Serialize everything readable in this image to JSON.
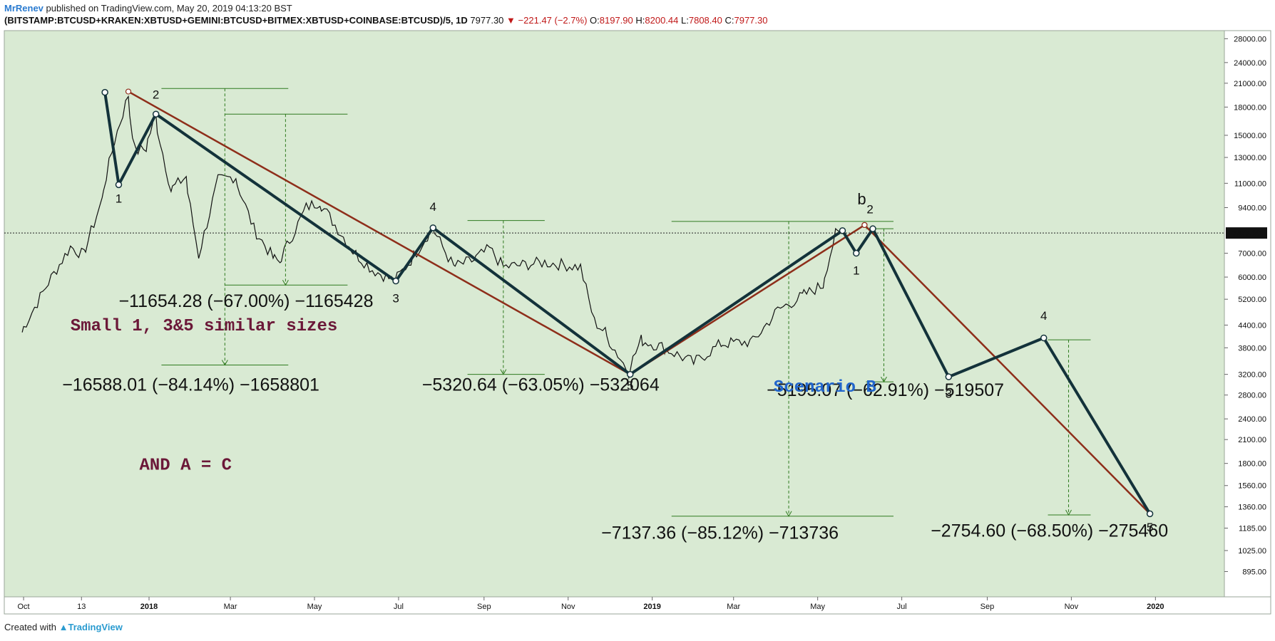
{
  "header": {
    "author": "MrRenev",
    "published": "published on TradingView.com, May 20, 2019 04:13:20 BST",
    "symbol": "(BITSTAMP:BTCUSD+KRAKEN:XBTUSD+GEMINI:BTCUSD+BITMEX:XBTUSD+COINBASE:BTCUSD)/5, 1D",
    "last": "7977.30",
    "change": "−221.47 (−2.7%)",
    "o_label": "O:",
    "o": "8197.90",
    "h_label": "H:",
    "h": "8200.44",
    "l_label": "L:",
    "l": "7808.40",
    "c_label": "C:",
    "c": "7977.30"
  },
  "footer": {
    "created": "Created with",
    "brand": "TradingView"
  },
  "colors": {
    "plot_bg": "#d9ead3",
    "wave": "#13323a",
    "trend": "#8e2e1a",
    "measure": "#2f7a1f",
    "text_purple": "#6b1838",
    "text_blue": "#2266cc",
    "price_tag_bg": "#111111"
  },
  "chart_data": {
    "type": "line",
    "scale": "log",
    "ylim": [
      760,
      29500
    ],
    "y_ticks": [
      "895.00",
      "1025.00",
      "1185.00",
      "1360.00",
      "1560.00",
      "1800.00",
      "2100.00",
      "2400.00",
      "2800.00",
      "3200.00",
      "3800.00",
      "4400.00",
      "5200.00",
      "6000.00",
      "7000.00",
      "9400.00",
      "11000.00",
      "13000.00",
      "15000.00",
      "18000.00",
      "21000.00",
      "24000.00",
      "28000.00"
    ],
    "x_ticks": [
      "Oct",
      "13",
      "2018",
      "Mar",
      "May",
      "Jul",
      "Sep",
      "Nov",
      "2019",
      "Mar",
      "May",
      "Jul",
      "Sep",
      "Nov",
      "2020"
    ],
    "current_price": "7977.30",
    "price_series": [
      [
        "2017-10-01",
        4200
      ],
      [
        "2017-10-20",
        5800
      ],
      [
        "2017-11-05",
        7300
      ],
      [
        "2017-11-15",
        6900
      ],
      [
        "2017-11-28",
        9900
      ],
      [
        "2017-12-07",
        14500
      ],
      [
        "2017-12-17",
        19500
      ],
      [
        "2017-12-22",
        13500
      ],
      [
        "2017-12-30",
        13800
      ],
      [
        "2018-01-06",
        17000
      ],
      [
        "2018-01-17",
        10500
      ],
      [
        "2018-01-28",
        11500
      ],
      [
        "2018-02-06",
        6900
      ],
      [
        "2018-02-20",
        11200
      ],
      [
        "2018-03-05",
        11500
      ],
      [
        "2018-03-18",
        8200
      ],
      [
        "2018-04-01",
        6800
      ],
      [
        "2018-04-06",
        6600
      ],
      [
        "2018-04-25",
        9400
      ],
      [
        "2018-05-05",
        9800
      ],
      [
        "2018-05-28",
        7200
      ],
      [
        "2018-06-12",
        6300
      ],
      [
        "2018-06-28",
        5850
      ],
      [
        "2018-07-10",
        6700
      ],
      [
        "2018-07-26",
        8300
      ],
      [
        "2018-08-10",
        6400
      ],
      [
        "2018-08-25",
        6700
      ],
      [
        "2018-09-05",
        7200
      ],
      [
        "2018-09-15",
        6400
      ],
      [
        "2018-10-15",
        6600
      ],
      [
        "2018-11-10",
        6400
      ],
      [
        "2018-11-20",
        4500
      ],
      [
        "2018-11-28",
        4200
      ],
      [
        "2018-12-15",
        3250
      ],
      [
        "2018-12-24",
        4000
      ],
      [
        "2019-01-10",
        3800
      ],
      [
        "2019-01-31",
        3450
      ],
      [
        "2019-02-20",
        3900
      ],
      [
        "2019-03-15",
        3950
      ],
      [
        "2019-04-02",
        4850
      ],
      [
        "2019-04-20",
        5300
      ],
      [
        "2019-05-05",
        5700
      ],
      [
        "2019-05-14",
        7900
      ],
      [
        "2019-05-19",
        8000
      ]
    ],
    "wave_line": [
      [
        "2017-11-30",
        19800
      ],
      [
        "2017-12-10",
        10900
      ],
      [
        "2018-01-06",
        17200
      ],
      [
        "2018-06-29",
        5850
      ],
      [
        "2018-07-26",
        8250
      ],
      [
        "2018-12-16",
        3200
      ],
      [
        "2019-05-19",
        8100
      ],
      [
        "2019-05-29",
        7000
      ],
      [
        "2019-06-10",
        8200
      ],
      [
        "2019-08-04",
        3150
      ],
      [
        "2019-10-12",
        4050
      ],
      [
        "2019-12-28",
        1300
      ]
    ],
    "trend_lines": [
      [
        [
          "2017-12-17",
          19900
        ],
        [
          "2018-12-16",
          3200
        ]
      ],
      [
        [
          "2018-12-16",
          3200
        ],
        [
          "2019-06-04",
          8400
        ]
      ],
      [
        [
          "2019-06-04",
          8400
        ],
        [
          "2019-12-28",
          1300
        ]
      ]
    ],
    "wave_labels": [
      {
        "label": "1",
        "date": "2017-12-10",
        "price": 9700,
        "pos": "below"
      },
      {
        "label": "2",
        "date": "2018-01-06",
        "price": 19000,
        "pos": "above"
      },
      {
        "label": "3",
        "date": "2018-06-29",
        "price": 5100,
        "pos": "below"
      },
      {
        "label": "4",
        "date": "2018-07-26",
        "price": 9200,
        "pos": "above"
      },
      {
        "label": "5",
        "date": "2018-12-16",
        "price": 2900,
        "pos": "below"
      },
      {
        "label": "1",
        "date": "2019-05-29",
        "price": 6100,
        "pos": "below"
      },
      {
        "label": "2",
        "date": "2019-06-08",
        "price": 9050,
        "pos": "above"
      },
      {
        "label": "b",
        "date": "2019-06-02",
        "price": 9600,
        "pos": "above"
      },
      {
        "label": "3",
        "date": "2019-08-04",
        "price": 2750,
        "pos": "below"
      },
      {
        "label": "4",
        "date": "2019-10-12",
        "price": 4550,
        "pos": "above"
      },
      {
        "label": "5",
        "date": "2019-12-28",
        "price": 1160,
        "pos": "below"
      }
    ],
    "measurements": [
      {
        "d1": "2018-01-10",
        "d2": "2018-04-12",
        "xm": "2018-02-25",
        "top": 20300,
        "bottom": 3400,
        "text": "−16588.01 (−84.14%) −1658801",
        "tdate": "2017-10-30",
        "tprice": 2880
      },
      {
        "d1": "2018-02-25",
        "d2": "2018-05-25",
        "xm": "2018-04-10",
        "top": 17200,
        "bottom": 5700,
        "text": "−11654.28 (−67.00%) −1165428",
        "tdate": "2017-12-10",
        "tprice": 4950
      },
      {
        "d1": "2018-08-20",
        "d2": "2018-10-15",
        "xm": "2018-09-15",
        "top": 8650,
        "bottom": 3200,
        "text": "−5320.64 (−63.05%) −532064",
        "tdate": "2018-07-18",
        "tprice": 2880
      },
      {
        "d1": "2019-01-15",
        "d2": "2019-06-25",
        "xm": "2019-04-10",
        "top": 8600,
        "bottom": 1280,
        "text": "−7137.36 (−85.12%) −713736",
        "tdate": "2018-11-25",
        "tprice": 1105
      },
      {
        "d1": "2019-06-05",
        "d2": "2019-06-25",
        "xm": "2019-06-18",
        "top": 8200,
        "bottom": 3050,
        "text": "−5195.07 (−62.91%) −519507",
        "tdate": "2019-03-25",
        "tprice": 2780
      },
      {
        "d1": "2019-10-15",
        "d2": "2019-11-15",
        "xm": "2019-10-30",
        "top": 4000,
        "bottom": 1290,
        "text": "−2754.60 (−68.50%) −275460",
        "tdate": "2019-07-22",
        "tprice": 1120
      }
    ],
    "notes": [
      {
        "text": "Small 1, 3&5 similar sizes",
        "date": "2017-11-05",
        "price": 4250,
        "color": "purple"
      },
      {
        "text": "AND A = C",
        "date": "2017-12-25",
        "price": 1730,
        "color": "purple"
      },
      {
        "text": "Scenario B",
        "date": "2019-03-30",
        "price": 2860,
        "color": "blue"
      }
    ]
  }
}
